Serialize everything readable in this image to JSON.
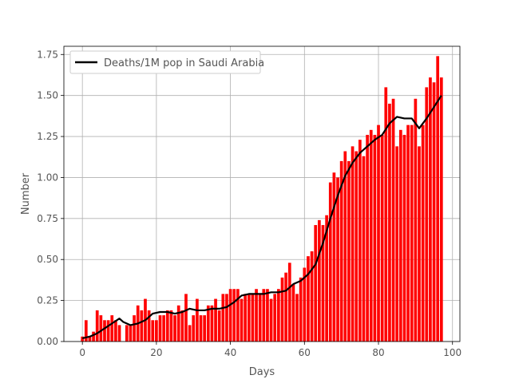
{
  "chart_data": {
    "type": "bar",
    "xlabel": "Days",
    "ylabel": "Number",
    "xlim": [
      -5,
      102
    ],
    "ylim": [
      0,
      1.8
    ],
    "xticks": [
      0,
      20,
      40,
      60,
      80,
      100
    ],
    "yticks": [
      0.0,
      0.25,
      0.5,
      0.75,
      1.0,
      1.25,
      1.5,
      1.75
    ],
    "ytick_labels": [
      "0.00",
      "0.25",
      "0.50",
      "0.75",
      "1.00",
      "1.25",
      "1.50",
      "1.75"
    ],
    "grid": true,
    "legend": {
      "position": "top-left",
      "entries": [
        "Deaths/1M pop in Saudi Arabia"
      ]
    },
    "colors": {
      "bars": "#ff0000",
      "line": "#000000",
      "grid": "#b0b0b0"
    },
    "series": [
      {
        "type": "bar",
        "x": [
          0,
          1,
          2,
          3,
          4,
          5,
          6,
          7,
          8,
          9,
          10,
          11,
          12,
          13,
          14,
          15,
          16,
          17,
          18,
          19,
          20,
          21,
          22,
          23,
          24,
          25,
          26,
          27,
          28,
          29,
          30,
          31,
          32,
          33,
          34,
          35,
          36,
          37,
          38,
          39,
          40,
          41,
          42,
          43,
          44,
          45,
          46,
          47,
          48,
          49,
          50,
          51,
          52,
          53,
          54,
          55,
          56,
          57,
          58,
          59,
          60,
          61,
          62,
          63,
          64,
          65,
          66,
          67,
          68,
          69,
          70,
          71,
          72,
          73,
          74,
          75,
          76,
          77,
          78,
          79,
          80,
          81,
          82,
          83,
          84,
          85,
          86,
          87,
          88,
          89,
          90,
          91,
          92,
          93,
          94,
          95,
          96,
          97
        ],
        "values": [
          0.03,
          0.13,
          0.03,
          0.06,
          0.19,
          0.16,
          0.13,
          0.13,
          0.16,
          0.13,
          0.1,
          0.0,
          0.1,
          0.1,
          0.16,
          0.22,
          0.19,
          0.26,
          0.19,
          0.13,
          0.13,
          0.16,
          0.16,
          0.19,
          0.19,
          0.16,
          0.22,
          0.19,
          0.29,
          0.1,
          0.16,
          0.26,
          0.16,
          0.16,
          0.22,
          0.22,
          0.26,
          0.19,
          0.29,
          0.29,
          0.32,
          0.32,
          0.32,
          0.26,
          0.29,
          0.29,
          0.29,
          0.32,
          0.29,
          0.32,
          0.32,
          0.26,
          0.29,
          0.32,
          0.39,
          0.42,
          0.48,
          0.35,
          0.29,
          0.39,
          0.45,
          0.52,
          0.55,
          0.71,
          0.74,
          0.71,
          0.77,
          0.97,
          1.03,
          1.0,
          1.1,
          1.16,
          1.1,
          1.19,
          1.16,
          1.23,
          1.13,
          1.26,
          1.29,
          1.26,
          1.32,
          1.26,
          1.55,
          1.45,
          1.48,
          1.19,
          1.29,
          1.26,
          1.32,
          1.32,
          1.48,
          1.19,
          1.32,
          1.55,
          1.61,
          1.58,
          1.74,
          1.61
        ]
      },
      {
        "type": "line",
        "name": "Deaths/1M pop in Saudi Arabia",
        "x": [
          0,
          2,
          4,
          6,
          8,
          10,
          11,
          13,
          15,
          17,
          19,
          21,
          23,
          25,
          27,
          29,
          31,
          33,
          35,
          37,
          39,
          41,
          43,
          45,
          47,
          49,
          51,
          53,
          55,
          57,
          59,
          61,
          63,
          65,
          67,
          69,
          71,
          73,
          75,
          77,
          79,
          81,
          83,
          85,
          87,
          89,
          91,
          93,
          95,
          97
        ],
        "values": [
          0.02,
          0.03,
          0.05,
          0.08,
          0.11,
          0.14,
          0.12,
          0.1,
          0.11,
          0.13,
          0.17,
          0.18,
          0.18,
          0.17,
          0.18,
          0.2,
          0.19,
          0.19,
          0.2,
          0.2,
          0.21,
          0.24,
          0.28,
          0.29,
          0.29,
          0.29,
          0.3,
          0.3,
          0.31,
          0.35,
          0.37,
          0.41,
          0.47,
          0.6,
          0.75,
          0.89,
          1.01,
          1.09,
          1.15,
          1.19,
          1.23,
          1.26,
          1.33,
          1.37,
          1.36,
          1.36,
          1.3,
          1.36,
          1.43,
          1.5
        ]
      }
    ]
  }
}
